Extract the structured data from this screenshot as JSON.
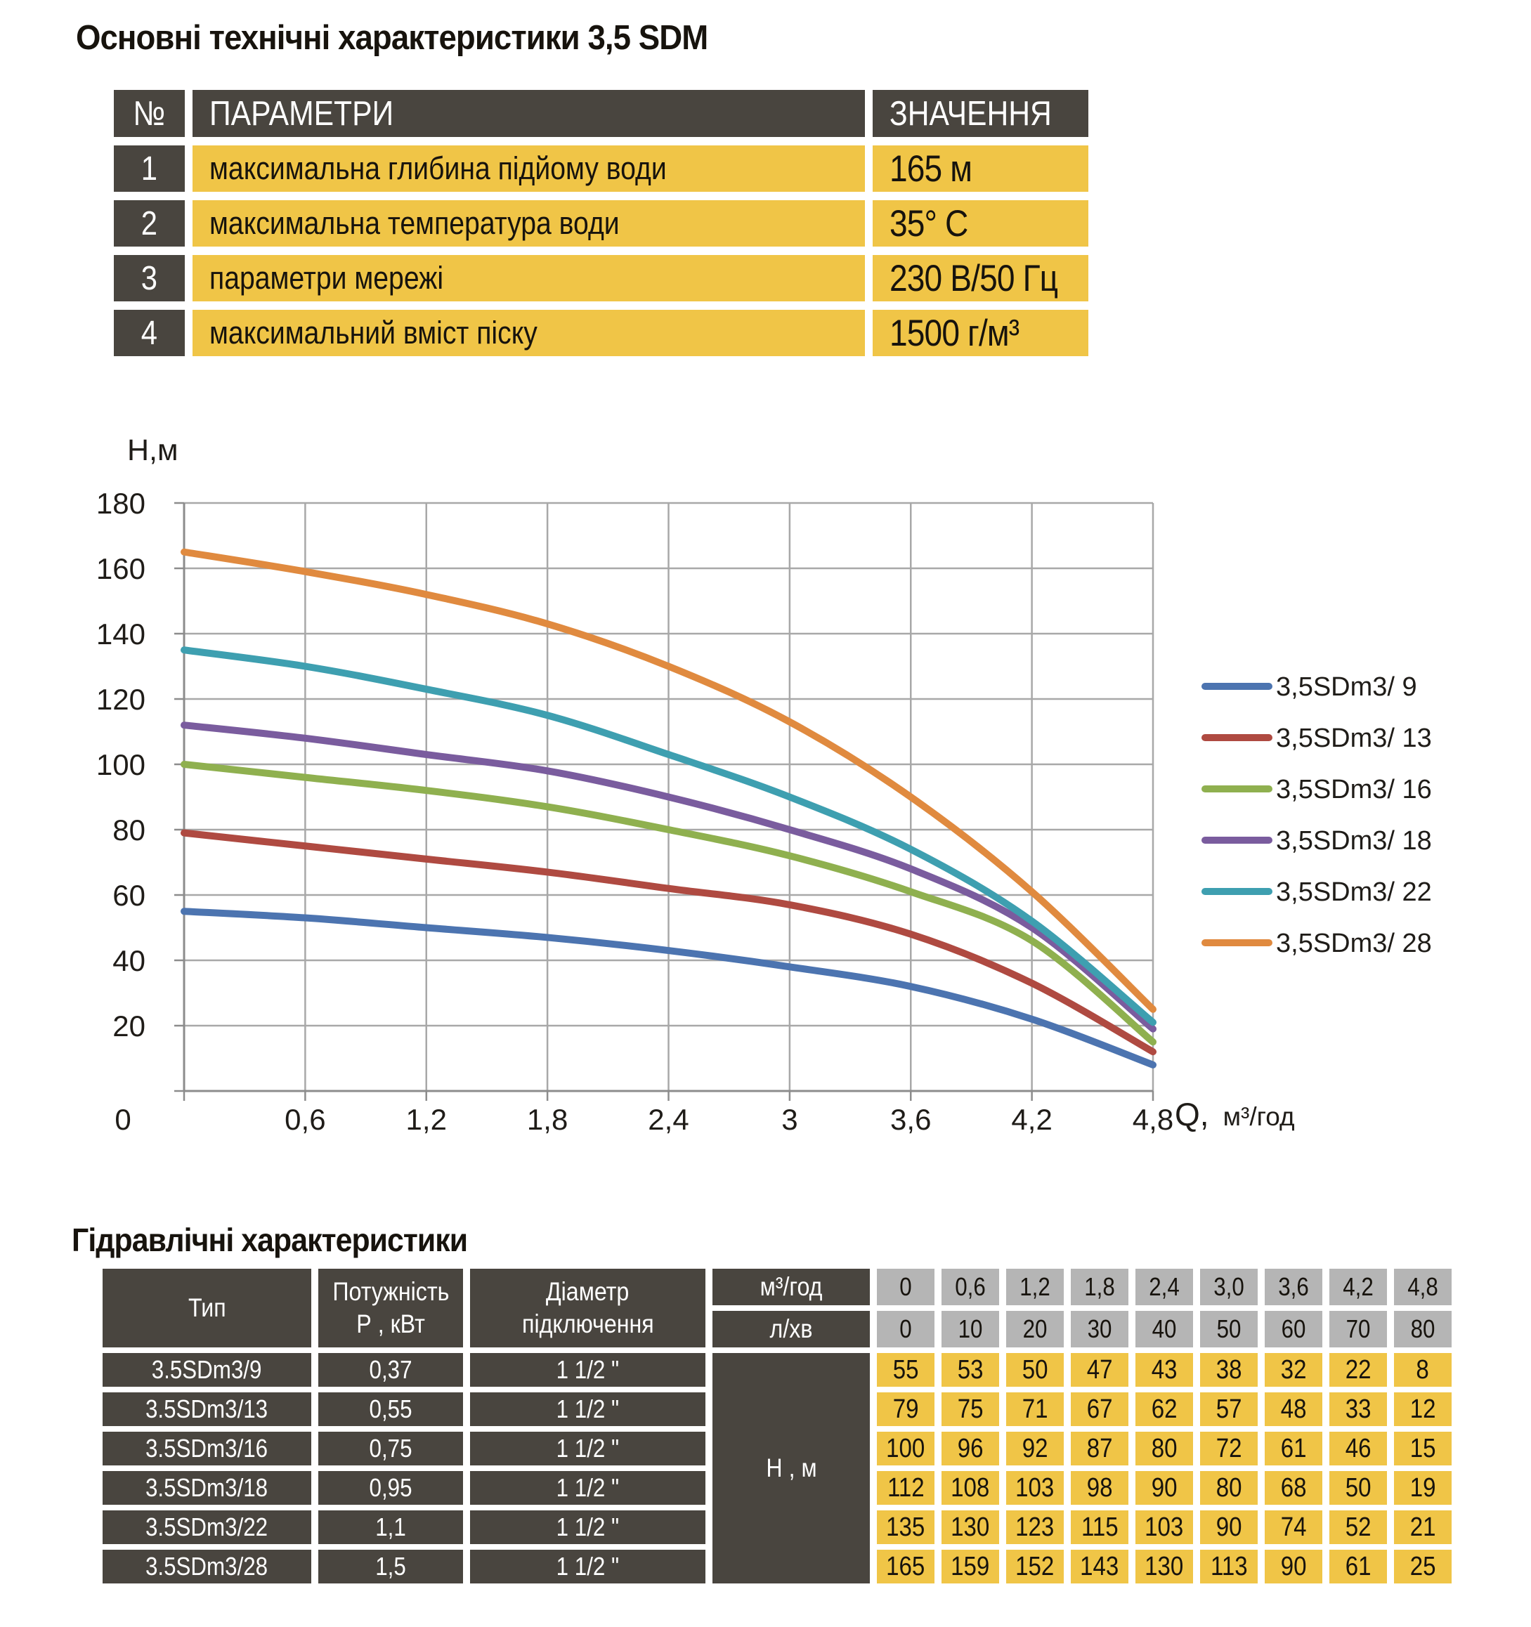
{
  "colors": {
    "dark_cell": "#49453F",
    "yellow_cell": "#F0C547",
    "gray_cell": "#B5B5B5",
    "grid_line": "#A8A8A8",
    "axis_line": "#8C8C8C",
    "text_dark": "#17130D",
    "text_light": "#FFFFFF"
  },
  "spec": {
    "title": "Основні технічні характеристики 3,5 SDM",
    "header": {
      "num": "№",
      "param": "ПАРАМЕТРИ",
      "value": "ЗНАЧЕННЯ"
    },
    "rows": [
      {
        "num": "1",
        "param": "максимальна глибина підйому води",
        "value": "165 м"
      },
      {
        "num": "2",
        "param": "максимальна температура води",
        "value": "35° C"
      },
      {
        "num": "3",
        "param": "параметри мережі",
        "value": "230 В/50 Гц"
      },
      {
        "num": "4",
        "param": "максимальний вміст піску",
        "value": "1500 г/м³"
      }
    ]
  },
  "chart_data": {
    "type": "line",
    "title": "",
    "ylabel": "Н,м",
    "xlabel": "Q,",
    "xlabel_units": "м³/год",
    "x": [
      0,
      0.6,
      1.2,
      1.8,
      2.4,
      3,
      3.6,
      4.2,
      4.8
    ],
    "x_tick_labels": [
      "0",
      "0,6",
      "1,2",
      "1,8",
      "2,4",
      "3",
      "3,6",
      "4,2",
      "4,8"
    ],
    "y_ticks": [
      180,
      160,
      140,
      120,
      100,
      80,
      60,
      40,
      20
    ],
    "xlim": [
      0,
      4.8
    ],
    "ylim": [
      0,
      180
    ],
    "grid": true,
    "legend_position": "right",
    "series": [
      {
        "name": "3,5SDm3/ 9",
        "color": "#4C74B0",
        "values": [
          55,
          53,
          50,
          47,
          43,
          38,
          32,
          22,
          8
        ]
      },
      {
        "name": "3,5SDm3/ 13",
        "color": "#AF4A41",
        "values": [
          79,
          75,
          71,
          67,
          62,
          57,
          48,
          33,
          12
        ]
      },
      {
        "name": "3,5SDm3/ 16",
        "color": "#8FB04F",
        "values": [
          100,
          96,
          92,
          87,
          80,
          72,
          61,
          46,
          15
        ]
      },
      {
        "name": "3,5SDm3/ 18",
        "color": "#7A5C9E",
        "values": [
          112,
          108,
          103,
          98,
          90,
          80,
          68,
          50,
          19
        ]
      },
      {
        "name": "3,5SDm3/ 22",
        "color": "#3E9FB0",
        "values": [
          135,
          130,
          123,
          115,
          103,
          90,
          74,
          52,
          21
        ]
      },
      {
        "name": "3,5SDm3/ 28",
        "color": "#E08A3F",
        "values": [
          165,
          159,
          152,
          143,
          130,
          113,
          90,
          61,
          25
        ]
      }
    ]
  },
  "hydro": {
    "title": "Гідравлічні характеристики",
    "type_header": "Тип",
    "power_header_line1": "Потужність",
    "power_header_line2": "Р , кВт",
    "diameter_header_line1": "Діаметр",
    "diameter_header_line2": "підключення",
    "flow_m3_label": "м³/год",
    "flow_lmin_label": "л/хв",
    "head_label": "Н , м",
    "flow_m3": [
      "0",
      "0,6",
      "1,2",
      "1,8",
      "2,4",
      "3,0",
      "3,6",
      "4,2",
      "4,8"
    ],
    "flow_lmin": [
      "0",
      "10",
      "20",
      "30",
      "40",
      "50",
      "60",
      "70",
      "80"
    ],
    "rows": [
      {
        "type": "3.5SDm3/9",
        "power": "0,37",
        "diameter": "1 1/2 \"",
        "head": [
          "55",
          "53",
          "50",
          "47",
          "43",
          "38",
          "32",
          "22",
          "8"
        ]
      },
      {
        "type": "3.5SDm3/13",
        "power": "0,55",
        "diameter": "1 1/2 \"",
        "head": [
          "79",
          "75",
          "71",
          "67",
          "62",
          "57",
          "48",
          "33",
          "12"
        ]
      },
      {
        "type": "3.5SDm3/16",
        "power": "0,75",
        "diameter": "1 1/2 \"",
        "head": [
          "100",
          "96",
          "92",
          "87",
          "80",
          "72",
          "61",
          "46",
          "15"
        ]
      },
      {
        "type": "3.5SDm3/18",
        "power": "0,95",
        "diameter": "1 1/2 \"",
        "head": [
          "112",
          "108",
          "103",
          "98",
          "90",
          "80",
          "68",
          "50",
          "19"
        ]
      },
      {
        "type": "3.5SDm3/22",
        "power": "1,1",
        "diameter": "1 1/2 \"",
        "head": [
          "135",
          "130",
          "123",
          "115",
          "103",
          "90",
          "74",
          "52",
          "21"
        ]
      },
      {
        "type": "3.5SDm3/28",
        "power": "1,5",
        "diameter": "1 1/2 \"",
        "head": [
          "165",
          "159",
          "152",
          "143",
          "130",
          "113",
          "90",
          "61",
          "25"
        ]
      }
    ]
  }
}
